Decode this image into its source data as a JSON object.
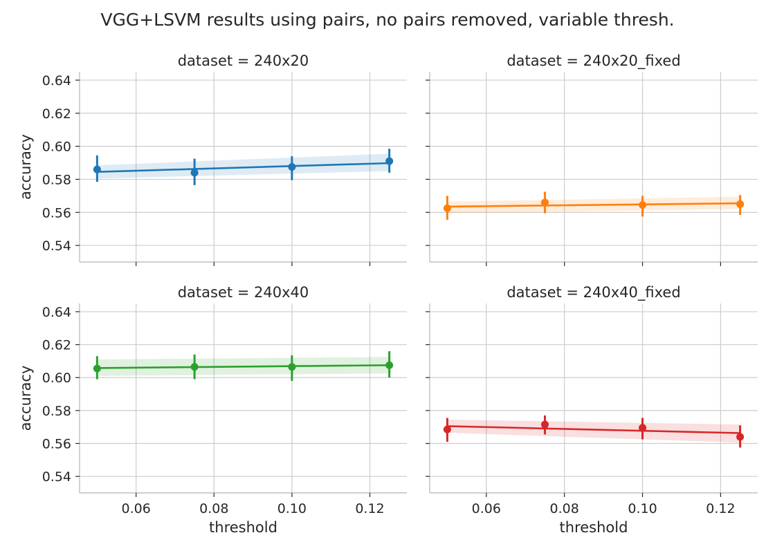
{
  "figure": {
    "title": "VGG+LSVM results using pairs, no pairs removed, variable thresh."
  },
  "chart_data": [
    {
      "type": "line",
      "title": "dataset = 240x20",
      "xlabel": "",
      "ylabel": "accuracy",
      "color": "#1f77b4",
      "x": [
        0.05,
        0.075,
        0.1,
        0.125
      ],
      "y": [
        0.586,
        0.584,
        0.5875,
        0.591
      ],
      "y_err_low": [
        0.5785,
        0.5765,
        0.5795,
        0.584
      ],
      "y_err_high": [
        0.5945,
        0.5925,
        0.594,
        0.5985
      ],
      "fit_line": [
        [
          0.05,
          0.5845
        ],
        [
          0.125,
          0.5898
        ]
      ],
      "band_low": [
        0.5805,
        0.585
      ],
      "band_high": [
        0.5885,
        0.5955
      ],
      "xlim": [
        0.0455,
        0.1295
      ],
      "ylim": [
        0.53,
        0.645
      ],
      "xticks": [
        "0.06",
        "0.08",
        "0.10",
        "0.12"
      ],
      "yticks": [
        "0.54",
        "0.56",
        "0.58",
        "0.60",
        "0.62",
        "0.64"
      ],
      "grid": true
    },
    {
      "type": "line",
      "title": "dataset = 240x20_fixed",
      "xlabel": "",
      "ylabel": "",
      "color": "#ff7f0e",
      "x": [
        0.05,
        0.075,
        0.1,
        0.125
      ],
      "y": [
        0.5625,
        0.566,
        0.5645,
        0.565
      ],
      "y_err_low": [
        0.5555,
        0.5595,
        0.5575,
        0.5585
      ],
      "y_err_high": [
        0.57,
        0.5725,
        0.57,
        0.5705
      ],
      "fit_line": [
        [
          0.05,
          0.5635
        ],
        [
          0.125,
          0.5655
        ]
      ],
      "band_low": [
        0.5595,
        0.562
      ],
      "band_high": [
        0.5665,
        0.5695
      ],
      "xlim": [
        0.0455,
        0.1295
      ],
      "ylim": [
        0.53,
        0.645
      ],
      "xticks": [
        "0.06",
        "0.08",
        "0.10",
        "0.12"
      ],
      "yticks": [
        "0.54",
        "0.56",
        "0.58",
        "0.60",
        "0.62",
        "0.64"
      ],
      "grid": true
    },
    {
      "type": "line",
      "title": "dataset = 240x40",
      "xlabel": "threshold",
      "ylabel": "accuracy",
      "color": "#2ca02c",
      "x": [
        0.05,
        0.075,
        0.1,
        0.125
      ],
      "y": [
        0.6055,
        0.6065,
        0.6065,
        0.6075
      ],
      "y_err_low": [
        0.599,
        0.599,
        0.598,
        0.6
      ],
      "y_err_high": [
        0.613,
        0.614,
        0.6135,
        0.616
      ],
      "fit_line": [
        [
          0.05,
          0.6058
        ],
        [
          0.125,
          0.6075
        ]
      ],
      "band_low": [
        0.601,
        0.6025
      ],
      "band_high": [
        0.611,
        0.6125
      ],
      "xlim": [
        0.0455,
        0.1295
      ],
      "ylim": [
        0.53,
        0.645
      ],
      "xticks": [
        "0.06",
        "0.08",
        "0.10",
        "0.12"
      ],
      "yticks": [
        "0.54",
        "0.56",
        "0.58",
        "0.60",
        "0.62",
        "0.64"
      ],
      "grid": true
    },
    {
      "type": "line",
      "title": "dataset = 240x40_fixed",
      "xlabel": "threshold",
      "ylabel": "",
      "color": "#d62728",
      "x": [
        0.05,
        0.075,
        0.1,
        0.125
      ],
      "y": [
        0.5685,
        0.5715,
        0.5695,
        0.564
      ],
      "y_err_low": [
        0.561,
        0.5655,
        0.5625,
        0.5575
      ],
      "y_err_high": [
        0.5755,
        0.577,
        0.5755,
        0.571
      ],
      "fit_line": [
        [
          0.05,
          0.5705
        ],
        [
          0.125,
          0.5663
        ]
      ],
      "band_low": [
        0.5665,
        0.5605
      ],
      "band_high": [
        0.5745,
        0.5715
      ],
      "xlim": [
        0.0455,
        0.1295
      ],
      "ylim": [
        0.53,
        0.645
      ],
      "xticks": [
        "0.06",
        "0.08",
        "0.10",
        "0.12"
      ],
      "yticks": [
        "0.54",
        "0.56",
        "0.58",
        "0.60",
        "0.62",
        "0.64"
      ],
      "grid": true
    }
  ]
}
